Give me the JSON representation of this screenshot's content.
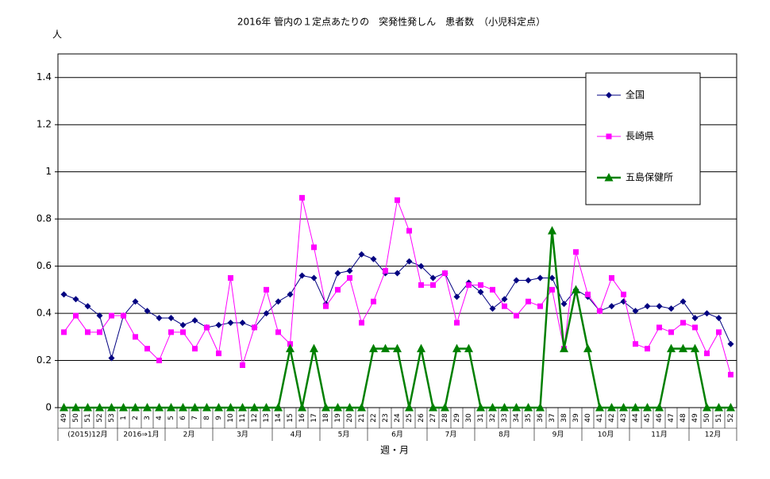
{
  "chart_data": {
    "type": "line",
    "title": "2016年 管内の１定点あたりの　突発性発しん　患者数　（小児科定点）",
    "y_label": "人",
    "x_label": "週・月",
    "categories": [
      "49",
      "50",
      "51",
      "52",
      "53",
      "1",
      "2",
      "3",
      "4",
      "5",
      "6",
      "7",
      "8",
      "9",
      "10",
      "11",
      "12",
      "13",
      "14",
      "15",
      "16",
      "17",
      "18",
      "19",
      "20",
      "21",
      "22",
      "23",
      "24",
      "25",
      "26",
      "27",
      "28",
      "29",
      "30",
      "31",
      "32",
      "33",
      "34",
      "35",
      "36",
      "37",
      "38",
      "39",
      "40",
      "41",
      "42",
      "43",
      "44",
      "45",
      "46",
      "47",
      "48",
      "49",
      "50",
      "51",
      "52"
    ],
    "x_groups": [
      {
        "label": "(2015)12月",
        "span": 5
      },
      {
        "label": "2016⇒1月",
        "span": 4
      },
      {
        "label": "2月",
        "span": 4
      },
      {
        "label": "3月",
        "span": 5
      },
      {
        "label": "4月",
        "span": 4
      },
      {
        "label": "5月",
        "span": 4
      },
      {
        "label": "6月",
        "span": 5
      },
      {
        "label": "7月",
        "span": 4
      },
      {
        "label": "8月",
        "span": 5
      },
      {
        "label": "9月",
        "span": 4
      },
      {
        "label": "10月",
        "span": 4
      },
      {
        "label": "11月",
        "span": 5
      },
      {
        "label": "12月",
        "span": 4
      }
    ],
    "series": [
      {
        "name": "全国",
        "color": "#000080",
        "marker": "diamond",
        "values": [
          0.48,
          0.46,
          0.43,
          0.39,
          0.21,
          0.39,
          0.45,
          0.41,
          0.38,
          0.38,
          0.35,
          0.37,
          0.34,
          0.35,
          0.36,
          0.36,
          0.34,
          0.4,
          0.45,
          0.48,
          0.56,
          0.55,
          0.44,
          0.57,
          0.58,
          0.65,
          0.63,
          0.57,
          0.57,
          0.62,
          0.6,
          0.55,
          0.57,
          0.47,
          0.53,
          0.49,
          0.42,
          0.46,
          0.54,
          0.54,
          0.55,
          0.55,
          0.44,
          0.5,
          0.47,
          0.41,
          0.43,
          0.45,
          0.41,
          0.43,
          0.43,
          0.42,
          0.45,
          0.38,
          0.4,
          0.38,
          0.27
        ]
      },
      {
        "name": "長崎県",
        "color": "#ff00ff",
        "marker": "square",
        "values": [
          0.32,
          0.39,
          0.32,
          0.32,
          0.39,
          0.39,
          0.3,
          0.25,
          0.2,
          0.32,
          0.32,
          0.25,
          0.34,
          0.23,
          0.55,
          0.18,
          0.34,
          0.5,
          0.32,
          0.27,
          0.89,
          0.68,
          0.43,
          0.5,
          0.55,
          0.36,
          0.45,
          0.58,
          0.88,
          0.75,
          0.52,
          0.52,
          0.57,
          0.36,
          0.52,
          0.52,
          0.5,
          0.43,
          0.39,
          0.45,
          0.43,
          0.5,
          0.25,
          0.66,
          0.48,
          0.41,
          0.55,
          0.48,
          0.27,
          0.25,
          0.34,
          0.32,
          0.36,
          0.34,
          0.23,
          0.32,
          0.14
        ]
      },
      {
        "name": "五島保健所",
        "color": "#008000",
        "marker": "triangle",
        "values": [
          0,
          0,
          0,
          0,
          0,
          0,
          0,
          0,
          0,
          0,
          0,
          0,
          0,
          0,
          0,
          0,
          0,
          0,
          0,
          0.25,
          0,
          0.25,
          0,
          0,
          0,
          0,
          0.25,
          0.25,
          0.25,
          0,
          0.25,
          0,
          0,
          0.25,
          0.25,
          0,
          0,
          0,
          0,
          0,
          0,
          0.75,
          0.25,
          0.5,
          0.25,
          0,
          0,
          0,
          0,
          0,
          0,
          0.25,
          0.25,
          0.25,
          0,
          0,
          0
        ]
      }
    ],
    "ylim": [
      0,
      1.5
    ],
    "yticks": [
      0,
      0.2,
      0.4,
      0.6,
      0.8,
      1,
      1.2,
      1.4
    ],
    "grid": true,
    "legend": "upper right"
  }
}
